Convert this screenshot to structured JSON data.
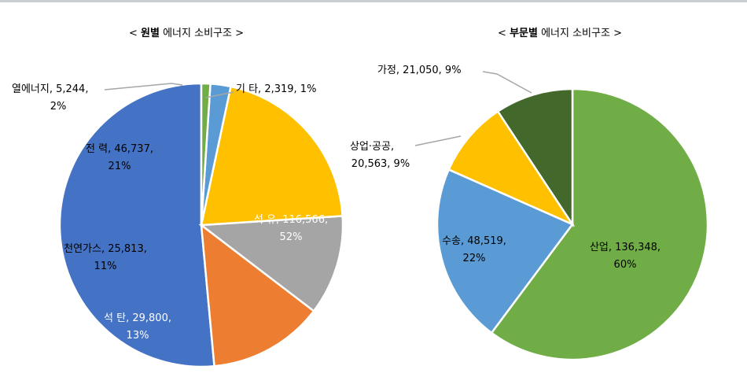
{
  "chart_data": [
    {
      "type": "pie",
      "title_prefix": "< ",
      "title_bold": "원별",
      "title_rest": " 에너지 소비구조 >",
      "slices": [
        {
          "name": "석 유",
          "value": 116566,
          "value_label": "116,566",
          "percent": "52%",
          "color": "#4472c4"
        },
        {
          "name": "석 탄",
          "value": 29800,
          "value_label": "29,800",
          "percent": "13%",
          "color": "#ed7d31"
        },
        {
          "name": "천연가스",
          "value": 25813,
          "value_label": "25,813",
          "percent": "11%",
          "color": "#a5a5a5"
        },
        {
          "name": "전 력",
          "value": 46737,
          "value_label": "46,737",
          "percent": "21%",
          "color": "#ffc000"
        },
        {
          "name": "열에너지",
          "value": 5244,
          "value_label": "5,244",
          "percent": "2%",
          "color": "#5b9bd5"
        },
        {
          "name": "기 타",
          "value": 2319,
          "value_label": "2,319",
          "percent": "1%",
          "color": "#70ad47"
        }
      ]
    },
    {
      "type": "pie",
      "title_prefix": "< ",
      "title_bold": "부문별",
      "title_rest": " 에너지 소비구조 >",
      "slices": [
        {
          "name": "산업",
          "value": 136348,
          "value_label": "136,348",
          "percent": "60%",
          "color": "#70ad47"
        },
        {
          "name": "수송",
          "value": 48519,
          "value_label": "48,519",
          "percent": "22%",
          "color": "#5b9bd5"
        },
        {
          "name": "상업·공공",
          "value": 20563,
          "value_label": "20,563",
          "percent": "9%",
          "color": "#ffc000"
        },
        {
          "name": "가정",
          "value": 21050,
          "value_label": "21,050",
          "percent": "9%",
          "color": "#43682b"
        }
      ]
    }
  ]
}
